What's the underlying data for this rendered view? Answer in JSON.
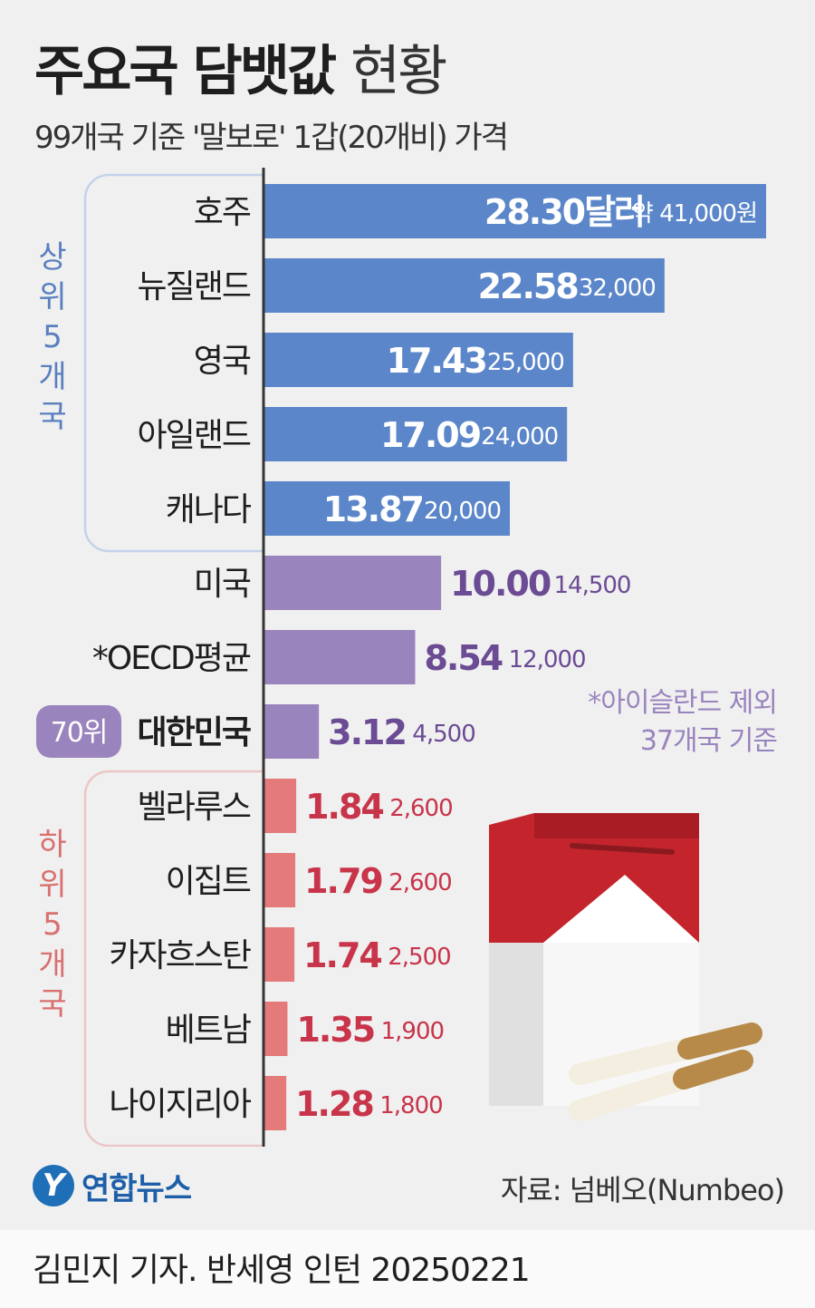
{
  "title_bold": "주요국 담뱃값",
  "title_light": "현황",
  "subtitle": "99개국 기준 '말보로' 1갑(20개비) 가격",
  "group_top_label": [
    "상",
    "위",
    "5",
    "개",
    "국"
  ],
  "group_bottom_label": [
    "하",
    "위",
    "5",
    "개",
    "국"
  ],
  "rank_badge": "70위",
  "footnote": [
    "*아이슬란드 제외",
    "37개국 기준"
  ],
  "source": "자료: 넘베오(Numbeo)",
  "credit": "김민지 기자. 반세영 인턴  20250221",
  "logo": {
    "mark": "Y",
    "name": "연합뉴스"
  },
  "colors": {
    "top": "#5b86c9",
    "mid": "#9a84bd",
    "bottom": "#e47a7a",
    "mid_text": "#6b4b94",
    "bottom_text": "#c8344a",
    "top_group": "#5a7fbf",
    "bottom_group": "#d96f6f"
  },
  "chart_data": {
    "type": "bar",
    "orientation": "horizontal",
    "unit": "달러",
    "categories": [
      "호주",
      "뉴질랜드",
      "영국",
      "아일랜드",
      "캐나다",
      "미국",
      "*OECD평균",
      "대한민국",
      "벨라루스",
      "이집트",
      "카자흐스탄",
      "베트남",
      "나이지리아"
    ],
    "values": [
      28.3,
      22.58,
      17.43,
      17.09,
      13.87,
      10.0,
      8.54,
      3.12,
      1.84,
      1.79,
      1.74,
      1.35,
      1.28
    ],
    "value_labels": [
      "28.30달러",
      "22.58",
      "17.43",
      "17.09",
      "13.87",
      "10.00",
      "8.54",
      "3.12",
      "1.84",
      "1.79",
      "1.74",
      "1.35",
      "1.28"
    ],
    "won_labels": [
      "약 41,000원",
      "32,000",
      "25,000",
      "24,000",
      "20,000",
      "14,500",
      "12,000",
      "4,500",
      "2,600",
      "2,600",
      "2,500",
      "1,900",
      "1,800"
    ],
    "groups": [
      "top",
      "top",
      "top",
      "top",
      "top",
      "mid",
      "mid",
      "mid",
      "bottom",
      "bottom",
      "bottom",
      "bottom",
      "bottom"
    ],
    "highlight": "대한민국"
  }
}
